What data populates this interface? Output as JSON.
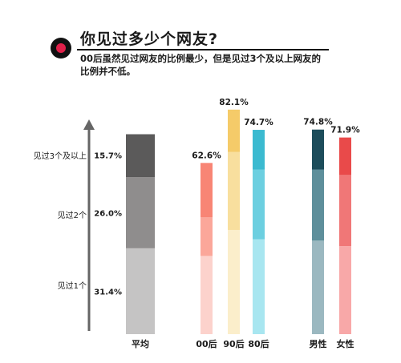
{
  "header": {
    "title": "你见过多少个网友?",
    "subtitle": "00后虽然见过网友的比例最少，但是见过3个及以上网友的比例并不低。"
  },
  "chart_data": {
    "type": "bar",
    "stacked": true,
    "title": "你见过多少个网友?",
    "level_labels": [
      "见过1个",
      "见过2个",
      "见过3个及以上"
    ],
    "groups": [
      {
        "name": "平均",
        "values": [
          31.4,
          26.0,
          15.7
        ],
        "segment_labels": [
          "31.4%",
          "26.0%",
          "15.7%"
        ],
        "colors": [
          "#c5c4c4",
          "#8f8d8d",
          "#5b5a5a"
        ]
      },
      {
        "name": "00后",
        "values": [
          28.6,
          14.1,
          19.9
        ],
        "total_label": "62.6%",
        "colors": [
          "#fcd2cc",
          "#fba79a",
          "#f88575"
        ]
      },
      {
        "name": "90后",
        "values": [
          38.1,
          28.5,
          15.5
        ],
        "total_label": "82.1%",
        "colors": [
          "#fbeecb",
          "#f8df9e",
          "#f5cb69"
        ]
      },
      {
        "name": "80后",
        "values": [
          34.7,
          25.5,
          14.5
        ],
        "total_label": "74.7%",
        "colors": [
          "#a8e6f0",
          "#6ccfe0",
          "#3bbad0"
        ]
      },
      {
        "name": "男性",
        "values": [
          34.2,
          26.0,
          14.6
        ],
        "total_label": "74.8%",
        "colors": [
          "#9bb8c0",
          "#5e8f9b",
          "#1d4d5b"
        ]
      },
      {
        "name": "女性",
        "values": [
          32.2,
          26.0,
          13.7
        ],
        "total_label": "71.9%",
        "colors": [
          "#f8a8a8",
          "#f07777",
          "#e94a4a"
        ]
      }
    ]
  }
}
